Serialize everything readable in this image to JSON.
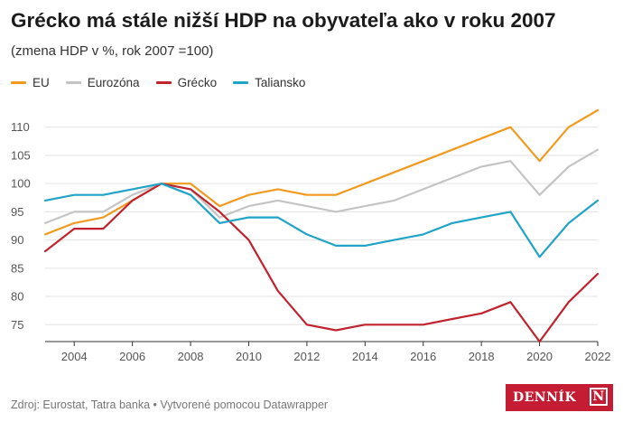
{
  "header": {
    "title": "Grécko má stále nižší HDP na obyvateľa ako v roku 2007",
    "subtitle": "(zmena HDP v %, rok 2007 =100)"
  },
  "footer": {
    "source": "Zdroj: Eurostat, Tatra banka • Vytvorené pomocou Datawrapper"
  },
  "brand": {
    "name": "DENNÍK",
    "mark": "N",
    "color": "#c41d33"
  },
  "chart_data": {
    "type": "line",
    "title": "Grécko má stále nižší HDP na obyvateľa ako v roku 2007",
    "subtitle": "(zmena HDP v %, rok 2007 =100)",
    "x": [
      2003,
      2004,
      2005,
      2006,
      2007,
      2008,
      2009,
      2010,
      2011,
      2012,
      2013,
      2014,
      2015,
      2016,
      2017,
      2018,
      2019,
      2020,
      2021,
      2022
    ],
    "x_ticks": [
      "2004",
      "2006",
      "2008",
      "2010",
      "2012",
      "2014",
      "2016",
      "2018",
      "2020",
      "2022"
    ],
    "y_ticks": [
      "75",
      "80",
      "85",
      "90",
      "95",
      "100",
      "105",
      "110"
    ],
    "xlim": [
      2003,
      2022
    ],
    "ylim": [
      72,
      113
    ],
    "grid": "horizontal",
    "legend_position": "top-left",
    "series": [
      {
        "name": "EU",
        "color": "#f29a1f",
        "values": [
          91,
          93,
          94,
          97,
          100,
          100,
          96,
          98,
          99,
          98,
          98,
          100,
          102,
          104,
          106,
          108,
          110,
          104,
          110,
          113
        ]
      },
      {
        "name": "Eurozóna",
        "color": "#c4c4c4",
        "values": [
          93,
          95,
          95,
          98,
          100,
          99,
          94,
          96,
          97,
          96,
          95,
          96,
          97,
          99,
          101,
          103,
          104,
          98,
          103,
          106
        ]
      },
      {
        "name": "Grécko",
        "color": "#c0232e",
        "values": [
          88,
          92,
          92,
          97,
          100,
          99,
          95,
          90,
          81,
          75,
          74,
          75,
          75,
          75,
          76,
          77,
          79,
          72,
          79,
          84
        ]
      },
      {
        "name": "Taliansko",
        "color": "#1fa3c7",
        "values": [
          97,
          98,
          98,
          99,
          100,
          98,
          93,
          94,
          94,
          91,
          89,
          89,
          90,
          91,
          93,
          94,
          95,
          87,
          93,
          97
        ]
      }
    ]
  }
}
